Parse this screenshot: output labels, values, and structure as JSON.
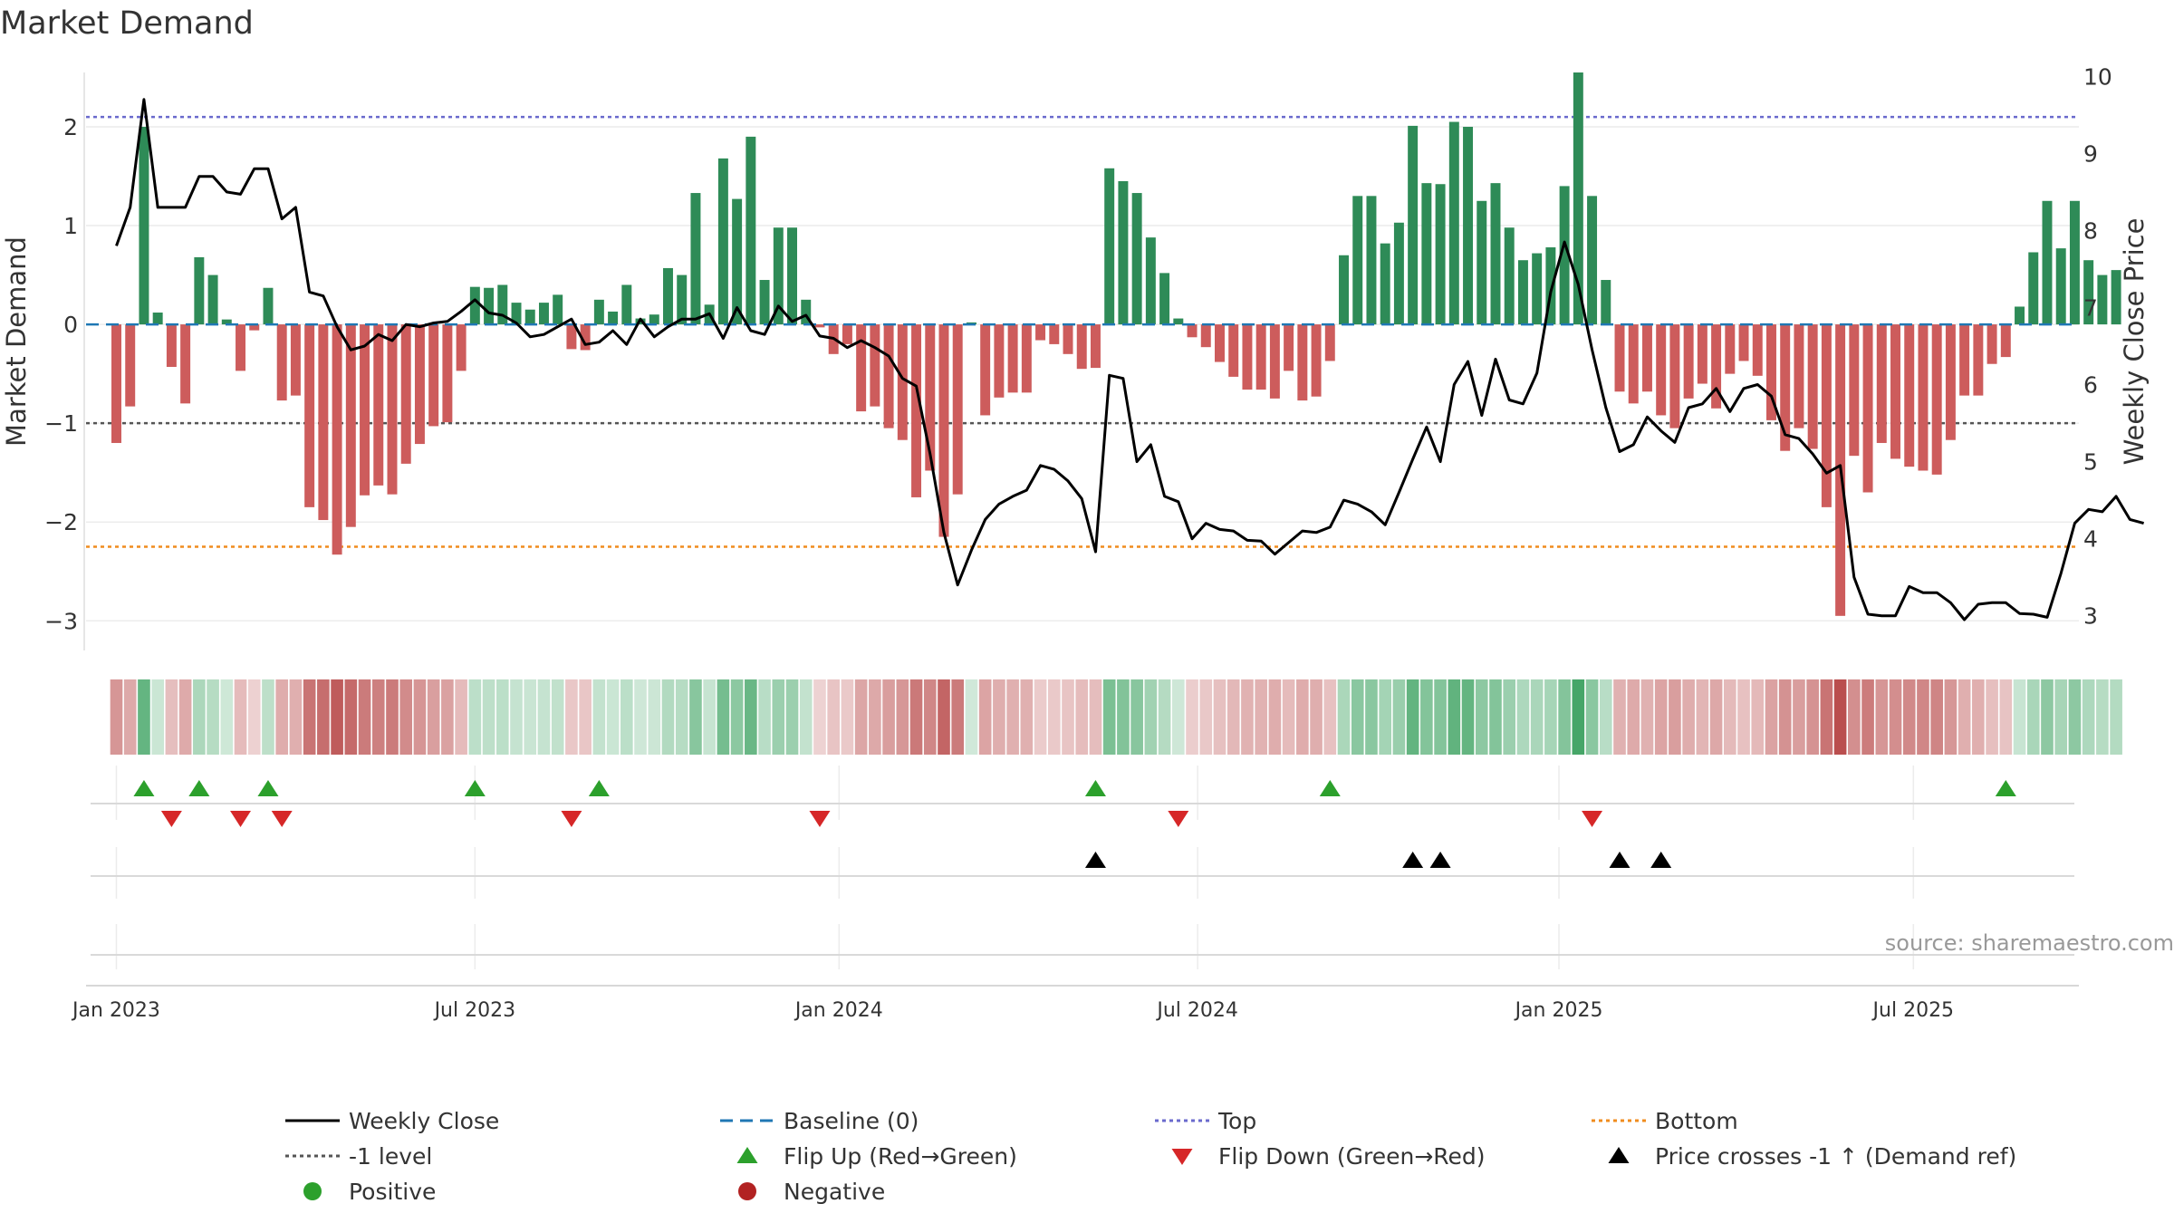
{
  "chart_data": {
    "type": "bar",
    "title": "Market Demand",
    "ylabel": "Market Demand",
    "y2label": "Weekly Close Price",
    "ylim": [
      -3.3,
      2.55
    ],
    "y2lim": [
      2.55,
      10.05
    ],
    "y_ticks": [
      -3,
      -2,
      -1,
      0,
      1,
      2
    ],
    "y_tick_labels": [
      "−3",
      "−2",
      "−1",
      "0",
      "1",
      "2"
    ],
    "y2_ticks": [
      3,
      4,
      5,
      6,
      7,
      8,
      9,
      10
    ],
    "y2_tick_labels": [
      "3",
      "4",
      "5",
      "6",
      "7",
      "8",
      "9",
      "10"
    ],
    "x_ticks": [
      0,
      26,
      52.4,
      78.4,
      104.6,
      130.3
    ],
    "x_tick_labels": [
      "Jan 2023",
      "Jul 2023",
      "Jan 2024",
      "Jul 2024",
      "Jan 2025",
      "Jul 2025"
    ],
    "x_range": [
      -2.2,
      142.3
    ],
    "reference_lines": {
      "top": 2.1,
      "bottom": -2.25,
      "minus_one": -1,
      "baseline": 0
    },
    "colors": {
      "positive_bar": "#2e8b57",
      "negative_bar": "#cd5c5c",
      "price_line": "#000000",
      "top_line": "#6a6acd",
      "bottom_line": "#f08c1e",
      "minus_one_line": "#555555",
      "baseline_line": "#1f77b4",
      "flip_up": "#2ca02c",
      "flip_down": "#d62728",
      "cross": "#000000",
      "positive_dot": "#2ca02c",
      "negative_dot": "#b22222"
    },
    "series": [
      {
        "name": "Market Demand",
        "values": [
          -1.2,
          -0.83,
          2.0,
          0.12,
          -0.43,
          -0.8,
          0.68,
          0.5,
          0.05,
          -0.47,
          -0.06,
          0.37,
          -0.77,
          -0.72,
          -1.85,
          -1.98,
          -2.33,
          -2.05,
          -1.73,
          -1.63,
          -1.72,
          -1.41,
          -1.21,
          -1.03,
          -0.99,
          -0.47,
          0.38,
          0.37,
          0.4,
          0.22,
          0.15,
          0.22,
          0.3,
          -0.25,
          -0.26,
          0.25,
          0.13,
          0.4,
          0.06,
          0.1,
          0.57,
          0.5,
          1.33,
          0.2,
          1.68,
          1.27,
          1.9,
          0.45,
          0.98,
          0.98,
          0.25,
          -0.03,
          -0.3,
          -0.2,
          -0.88,
          -0.83,
          -1.05,
          -1.17,
          -1.75,
          -1.48,
          -2.15,
          -1.72,
          0.02,
          -0.92,
          -0.74,
          -0.69,
          -0.69,
          -0.16,
          -0.2,
          -0.3,
          -0.45,
          -0.44,
          1.58,
          1.45,
          1.33,
          0.88,
          0.52,
          0.06,
          -0.13,
          -0.23,
          -0.38,
          -0.53,
          -0.66,
          -0.66,
          -0.75,
          -0.47,
          -0.77,
          -0.73,
          -0.37,
          0.7,
          1.3,
          1.3,
          0.82,
          1.03,
          2.01,
          1.43,
          1.42,
          2.05,
          2.0,
          1.25,
          1.43,
          0.98,
          0.65,
          0.72,
          0.78,
          1.4,
          2.55,
          1.3,
          0.45,
          -0.68,
          -0.8,
          -0.68,
          -0.92,
          -1.05,
          -0.75,
          -0.6,
          -0.85,
          -0.5,
          -0.37,
          -0.52,
          -0.97,
          -1.28,
          -1.05,
          -1.26,
          -1.85,
          -2.95,
          -1.33,
          -1.7,
          -1.2,
          -1.36,
          -1.44,
          -1.48,
          -1.52,
          -1.17,
          -0.72,
          -0.72,
          -0.4,
          -0.33,
          0.18,
          0.73,
          1.25,
          0.77,
          1.25,
          0.65,
          0.5,
          0.55
        ]
      },
      {
        "name": "Weekly Close",
        "values": [
          7.8,
          8.3,
          9.7,
          8.3,
          8.3,
          8.3,
          8.7,
          8.7,
          8.5,
          8.47,
          8.8,
          8.8,
          8.15,
          8.3,
          7.2,
          7.15,
          6.75,
          6.45,
          6.5,
          6.65,
          6.57,
          6.78,
          6.75,
          6.8,
          6.82,
          6.95,
          7.1,
          6.93,
          6.9,
          6.8,
          6.62,
          6.65,
          6.75,
          6.85,
          6.52,
          6.55,
          6.7,
          6.52,
          6.85,
          6.62,
          6.75,
          6.85,
          6.85,
          6.92,
          6.6,
          7.0,
          6.7,
          6.65,
          7.02,
          6.82,
          6.9,
          6.63,
          6.6,
          6.48,
          6.57,
          6.48,
          6.37,
          6.08,
          5.98,
          5.1,
          4.08,
          3.4,
          3.85,
          4.25,
          4.45,
          4.55,
          4.63,
          4.95,
          4.9,
          4.75,
          4.52,
          3.83,
          6.12,
          6.08,
          5.0,
          5.22,
          4.55,
          4.48,
          4.0,
          4.2,
          4.12,
          4.1,
          3.98,
          3.97,
          3.8,
          3.95,
          4.1,
          4.08,
          4.15,
          4.5,
          4.45,
          4.35,
          4.18,
          4.6,
          5.03,
          5.45,
          5.0,
          6.0,
          6.3,
          5.6,
          6.33,
          5.8,
          5.75,
          6.15,
          7.2,
          7.85,
          7.3,
          6.45,
          5.7,
          5.13,
          5.22,
          5.58,
          5.4,
          5.25,
          5.7,
          5.75,
          5.95,
          5.65,
          5.95,
          6.0,
          5.85,
          5.35,
          5.3,
          5.1,
          4.85,
          4.95,
          3.5,
          3.02,
          3.0,
          3.0,
          3.38,
          3.3,
          3.3,
          3.17,
          2.95,
          3.15,
          3.17,
          3.17,
          3.03,
          3.02,
          2.98,
          3.55,
          4.2,
          4.38,
          4.35,
          4.55,
          4.25,
          4.2
        ]
      }
    ],
    "flip_up_indices": [
      2,
      6,
      11,
      26,
      35,
      71,
      88,
      137
    ],
    "flip_down_indices": [
      4,
      9,
      12,
      33,
      51,
      77,
      107
    ],
    "price_cross_indices": [
      71,
      94,
      96,
      109,
      112
    ],
    "legend": [
      {
        "key": "weekly-close",
        "label": "Weekly Close"
      },
      {
        "key": "baseline",
        "label": "Baseline (0)"
      },
      {
        "key": "top",
        "label": "Top"
      },
      {
        "key": "bottom",
        "label": "Bottom"
      },
      {
        "key": "minus-one",
        "label": "-1 level"
      },
      {
        "key": "flip-up",
        "label": "Flip Up (Red→Green)"
      },
      {
        "key": "flip-down",
        "label": "Flip Down (Green→Red)"
      },
      {
        "key": "price-cross",
        "label": "Price crosses -1 ↑ (Demand ref)"
      },
      {
        "key": "positive",
        "label": "Positive"
      },
      {
        "key": "negative",
        "label": "Negative"
      }
    ],
    "source": "source: sharemaestro.com"
  }
}
